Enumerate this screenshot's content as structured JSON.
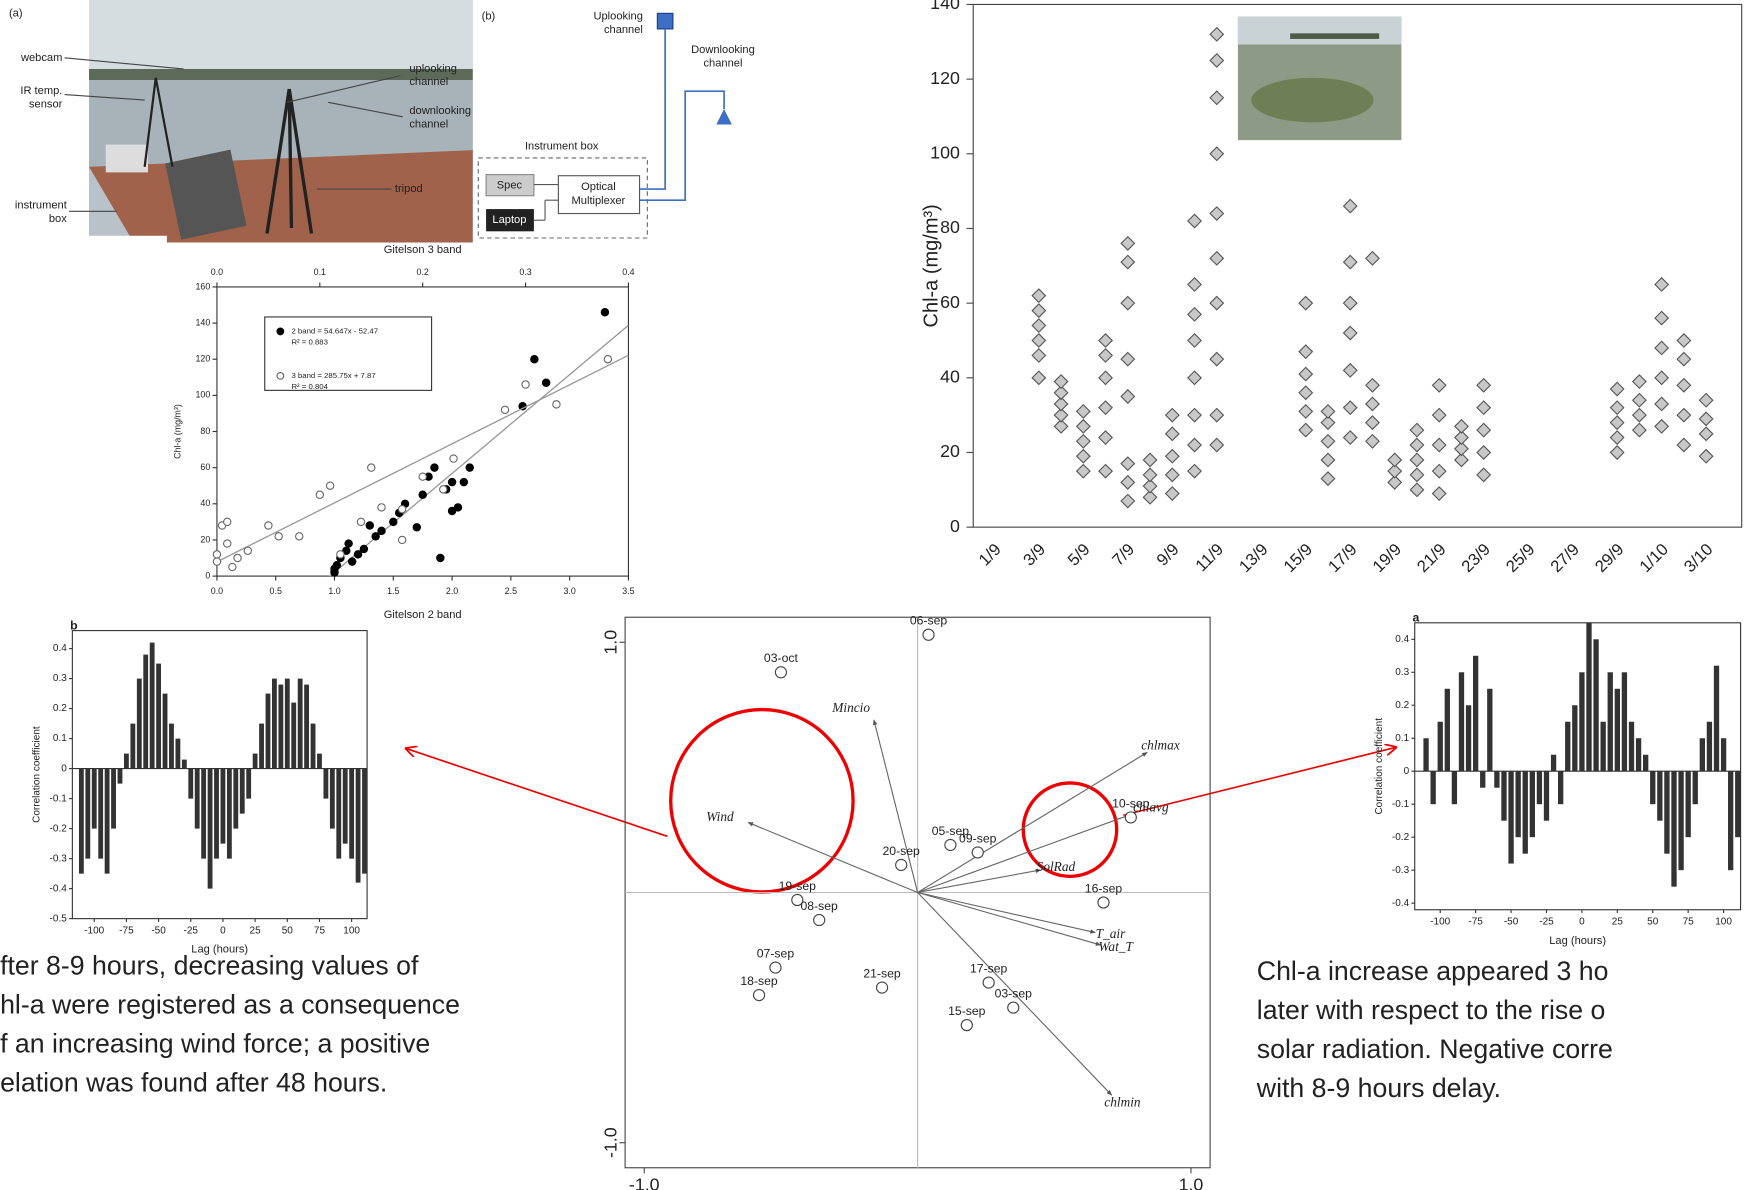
{
  "photo": {
    "label": "(a)",
    "callouts": [
      [
        "webcam"
      ],
      [
        "IR temp.",
        "sensor"
      ],
      [
        "instrument",
        "box"
      ],
      [
        "uplooking",
        "channel"
      ],
      [
        "downlooking",
        "channel"
      ],
      [
        "tripod"
      ]
    ]
  },
  "diagram": {
    "label": "(b)",
    "uplooking": [
      "Uplooking",
      "channel"
    ],
    "downlooking": [
      "Downlooking",
      "channel"
    ],
    "box": "Instrument box",
    "spec": "Spec",
    "laptop": "Laptop",
    "multiplexer": [
      "Optical",
      "Multiplexer"
    ]
  },
  "chart_data": [
    {
      "type": "scatter",
      "x_label": "Gitelson 2 band",
      "x2_label": "Gitelson 3 band",
      "y_label": "Chl-a (mg/m³)",
      "xlim": [
        0,
        3.5
      ],
      "xticks": [
        {
          "value": 0,
          "label": "0.0"
        },
        0.5,
        {
          "value": 1,
          "label": "1.0"
        },
        1.5,
        {
          "value": 2,
          "label": "2.0"
        },
        2.5,
        {
          "value": 3,
          "label": "3.0"
        },
        3.5
      ],
      "x2lim": [
        0,
        0.4
      ],
      "x2ticks": [
        {
          "value": 0,
          "label": "0.0"
        },
        0.1,
        0.2,
        0.3,
        0.4
      ],
      "ylim": [
        0,
        160
      ],
      "yticks": [
        0,
        20,
        40,
        60,
        80,
        100,
        120,
        140,
        160
      ],
      "series": [
        {
          "name": "2 band = 54.647x - 52.47",
          "r2": "R² = 0.883",
          "axis": "x",
          "marker": "filled",
          "color": "#000000",
          "fit": {
            "slope": 54.647,
            "intercept": -52.47
          },
          "x": [
            1.0,
            1.0,
            1.02,
            1.05,
            1.1,
            1.12,
            1.15,
            1.2,
            1.25,
            1.3,
            1.35,
            1.4,
            1.5,
            1.55,
            1.6,
            1.7,
            1.75,
            1.8,
            1.85,
            1.9,
            1.95,
            2.0,
            2.0,
            2.05,
            2.1,
            2.15,
            2.6,
            2.7,
            2.8,
            3.3
          ],
          "values": [
            2,
            4,
            6,
            10,
            14,
            18,
            8,
            12,
            15,
            28,
            22,
            25,
            30,
            35,
            40,
            27,
            45,
            55,
            60,
            10,
            48,
            36,
            52,
            38,
            52,
            60,
            94,
            120,
            107,
            146
          ]
        },
        {
          "name": "3 band = 285.75x + 7.87",
          "r2": "R² = 0.804",
          "axis": "x2",
          "marker": "open",
          "color": "#666666",
          "fit": {
            "slope": 285.75,
            "intercept": 7.87
          },
          "x": [
            0.0,
            0.0,
            0.005,
            0.01,
            0.01,
            0.015,
            0.02,
            0.03,
            0.05,
            0.06,
            0.08,
            0.1,
            0.11,
            0.12,
            0.14,
            0.15,
            0.16,
            0.18,
            0.18,
            0.2,
            0.22,
            0.23,
            0.28,
            0.3,
            0.33,
            0.38
          ],
          "values": [
            8,
            12,
            28,
            30,
            18,
            5,
            10,
            14,
            28,
            22,
            22,
            45,
            50,
            12,
            30,
            60,
            38,
            20,
            37,
            55,
            48,
            65,
            92,
            106,
            95,
            120
          ]
        }
      ]
    },
    {
      "type": "dot",
      "y_label": "Chl-a (mg/m³)",
      "color": "#c8c8c8",
      "categories": [
        "1/9",
        null,
        "3/9",
        null,
        "5/9",
        null,
        "7/9",
        null,
        "9/9",
        null,
        "11/9",
        null,
        "13/9",
        null,
        "15/9",
        null,
        "17/9",
        null,
        "19/9",
        null,
        "21/9",
        null,
        "23/9",
        null,
        "25/9",
        null,
        "27/9",
        null,
        "29/9",
        null,
        "1/10",
        null,
        "3/10",
        null
      ],
      "values": [
        null,
        null,
        [
          40,
          46,
          50,
          54,
          58,
          62
        ],
        [
          27,
          30,
          33,
          36,
          39
        ],
        [
          15,
          19,
          23,
          27,
          31
        ],
        [
          15,
          24,
          32,
          40,
          46,
          50
        ],
        [
          7,
          12,
          17,
          35,
          45,
          60,
          71,
          76
        ],
        [
          8,
          11,
          14,
          18
        ],
        [
          9,
          14,
          19,
          25,
          30
        ],
        [
          15,
          22,
          30,
          40,
          50,
          57,
          65,
          82
        ],
        [
          22,
          30,
          45,
          60,
          72,
          84,
          100,
          115,
          125,
          132
        ],
        null,
        null,
        null,
        [
          26,
          31,
          36,
          41,
          47,
          60
        ],
        [
          13,
          18,
          23,
          28,
          31
        ],
        [
          24,
          32,
          42,
          52,
          60,
          71,
          86
        ],
        [
          23,
          28,
          33,
          38,
          72
        ],
        [
          12,
          15,
          18
        ],
        [
          10,
          14,
          18,
          22,
          26
        ],
        [
          9,
          15,
          22,
          30,
          38
        ],
        [
          18,
          21,
          24,
          27
        ],
        [
          14,
          20,
          26,
          32,
          38
        ],
        null,
        null,
        null,
        null,
        null,
        [
          20,
          24,
          28,
          32,
          37
        ],
        [
          26,
          30,
          34,
          39
        ],
        [
          27,
          33,
          40,
          48,
          56,
          65
        ],
        [
          22,
          30,
          38,
          45,
          50
        ],
        [
          19,
          25,
          29,
          34
        ],
        null
      ],
      "ylim": [
        0,
        140
      ],
      "yticks": [
        0,
        20,
        40,
        60,
        80,
        100,
        120,
        140
      ]
    },
    {
      "type": "bar",
      "label": "b",
      "x_label": "Lag (hours)",
      "y_label": "Correlation coefficient",
      "color": "#333333",
      "x": [
        -110,
        -105,
        -100,
        -95,
        -90,
        -85,
        -80,
        -75,
        -70,
        -65,
        -60,
        -55,
        -50,
        -45,
        -40,
        -35,
        -30,
        -25,
        -20,
        -15,
        -10,
        -5,
        0,
        5,
        10,
        15,
        20,
        25,
        30,
        35,
        40,
        45,
        50,
        55,
        60,
        65,
        70,
        75,
        80,
        85,
        90,
        95,
        100,
        105,
        110
      ],
      "values": [
        -0.35,
        -0.3,
        -0.2,
        -0.3,
        -0.35,
        -0.2,
        -0.05,
        0.05,
        0.15,
        0.3,
        0.38,
        0.42,
        0.35,
        0.25,
        0.15,
        0.1,
        0.03,
        -0.1,
        -0.2,
        -0.3,
        -0.4,
        -0.3,
        -0.25,
        -0.3,
        -0.2,
        -0.15,
        -0.1,
        0.05,
        0.15,
        0.25,
        0.3,
        0.28,
        0.3,
        0.22,
        0.3,
        0.28,
        0.15,
        0.05,
        -0.1,
        -0.2,
        -0.3,
        -0.25,
        -0.3,
        -0.38,
        -0.35
      ],
      "xlim": [
        -117,
        112
      ],
      "xticks": [
        -100,
        -75,
        -50,
        -25,
        0,
        25,
        50,
        75,
        100
      ],
      "ylim": [
        -0.5,
        0.46
      ],
      "yticks": [
        -0.5,
        -0.4,
        -0.3,
        -0.2,
        -0.1,
        0,
        0.1,
        0.2,
        0.3,
        0.4
      ]
    },
    {
      "type": "biplot",
      "xlim": [
        -1.07,
        1.07
      ],
      "ylim": [
        -1.1,
        1.1
      ],
      "xticks": [
        {
          "value": -1,
          "label": "-1.0"
        },
        {
          "value": 1,
          "label": "1.0"
        }
      ],
      "yticks": [
        {
          "value": -1,
          "label": "-1.0"
        },
        {
          "value": 1,
          "label": "1.0"
        }
      ],
      "points": {
        "names": [
          "06-sep",
          "03-oct",
          "05-sep",
          "09-sep",
          "10-sep",
          "20-sep",
          "19-sep",
          "08-sep",
          "16-sep",
          "07-sep",
          "18-sep",
          "21-sep",
          "17-sep",
          "03-sep",
          "15-sep"
        ],
        "x": [
          0.04,
          -0.5,
          0.12,
          0.22,
          0.78,
          -0.06,
          -0.44,
          -0.36,
          0.68,
          -0.52,
          -0.58,
          -0.13,
          0.26,
          0.35,
          0.18
        ],
        "y": [
          1.03,
          0.88,
          0.19,
          0.16,
          0.3,
          0.11,
          -0.03,
          -0.11,
          -0.04,
          -0.3,
          -0.41,
          -0.38,
          -0.36,
          -0.46,
          -0.53
        ]
      },
      "vectors": {
        "names": [
          "Mincio",
          "Wind",
          "chlmax",
          "chlavg",
          "SolRad",
          "T_air",
          "Wat_T",
          "chlmin"
        ],
        "x": [
          -0.16,
          -0.62,
          0.84,
          0.8,
          0.45,
          0.65,
          0.67,
          0.71
        ],
        "y": [
          0.69,
          0.28,
          0.56,
          0.32,
          0.09,
          -0.16,
          -0.21,
          -0.81
        ]
      }
    },
    {
      "type": "bar",
      "label": "a",
      "x_label": "Lag (hours)",
      "y_label": "Correlation coefficient",
      "color": "#333333",
      "x": [
        -110,
        -105,
        -100,
        -95,
        -90,
        -85,
        -80,
        -75,
        -70,
        -65,
        -60,
        -55,
        -50,
        -45,
        -40,
        -35,
        -30,
        -25,
        -20,
        -15,
        -10,
        -5,
        0,
        5,
        10,
        15,
        20,
        25,
        30,
        35,
        40,
        45,
        50,
        55,
        60,
        65,
        70,
        75,
        80,
        85,
        90,
        95,
        100,
        105,
        110
      ],
      "values": [
        0.1,
        -0.1,
        0.15,
        0.25,
        -0.1,
        0.3,
        0.2,
        0.35,
        -0.05,
        0.25,
        -0.05,
        -0.15,
        -0.28,
        -0.2,
        -0.25,
        -0.2,
        -0.1,
        -0.15,
        0.05,
        -0.1,
        0.15,
        0.2,
        0.3,
        0.45,
        0.4,
        0.15,
        0.3,
        0.25,
        0.3,
        0.15,
        0.1,
        0.05,
        -0.1,
        -0.15,
        -0.25,
        -0.35,
        -0.3,
        -0.2,
        -0.1,
        0.1,
        0.15,
        0.32,
        0.1,
        -0.3,
        -0.2
      ],
      "xlim": [
        -118,
        112
      ],
      "xticks": [
        -100,
        -75,
        -50,
        -25,
        0,
        25,
        50,
        75,
        100
      ],
      "ylim": [
        -0.42,
        0.45
      ],
      "yticks": [
        -0.4,
        -0.3,
        -0.2,
        -0.1,
        0,
        0.1,
        0.2,
        0.3,
        0.4
      ]
    }
  ],
  "captions": {
    "left": [
      "fter 8-9 hours, decreasing values of",
      "hl-a were registered as a consequence",
      "f an increasing wind force; a positive",
      "elation was found after 48 hours."
    ],
    "right": [
      "Chl-a increase appeared 3 ho",
      "later with respect to the rise o",
      "solar radiation. Negative corre",
      "with 8-9 hours delay."
    ]
  }
}
